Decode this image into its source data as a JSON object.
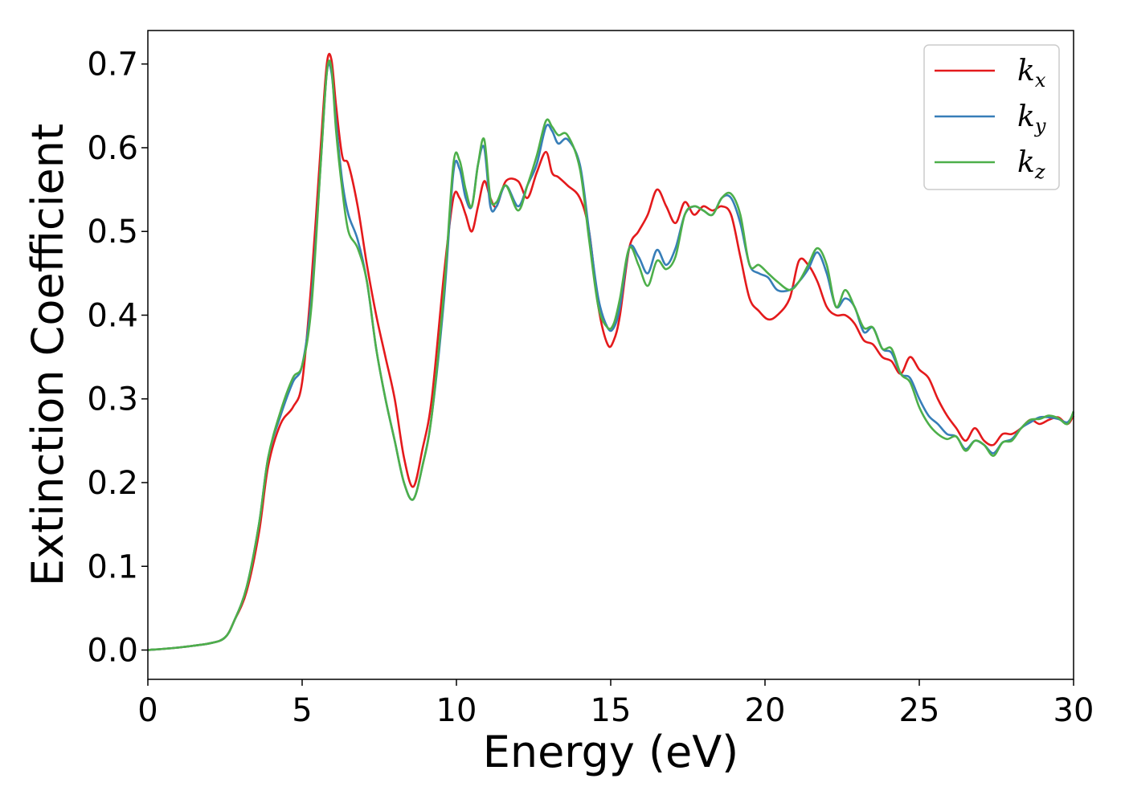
{
  "chart_data": {
    "type": "line",
    "title": "",
    "xlabel": "Energy (eV)",
    "ylabel": "Extinction Coefficient",
    "xlim": [
      0,
      30
    ],
    "ylim": [
      -0.035,
      0.74
    ],
    "xticks": [
      0,
      5,
      10,
      15,
      20,
      25,
      30
    ],
    "yticks": [
      0.0,
      0.1,
      0.2,
      0.3,
      0.4,
      0.5,
      0.6,
      0.7
    ],
    "grid": false,
    "legend_position": "top-right",
    "series": [
      {
        "name": "k",
        "subscript": "x",
        "color": "#e41a1c",
        "x": [
          0,
          1,
          2,
          2.5,
          2.8,
          3.2,
          3.6,
          3.9,
          4.3,
          4.7,
          5.0,
          5.3,
          5.6,
          5.8,
          5.95,
          6.1,
          6.3,
          6.5,
          6.8,
          7.1,
          7.4,
          7.7,
          8.0,
          8.3,
          8.6,
          8.9,
          9.2,
          9.6,
          9.9,
          10.1,
          10.3,
          10.5,
          10.7,
          10.9,
          11.1,
          11.3,
          11.6,
          12.0,
          12.3,
          12.6,
          12.9,
          13.1,
          13.3,
          13.6,
          14.0,
          14.3,
          14.6,
          14.9,
          15.1,
          15.3,
          15.6,
          15.9,
          16.2,
          16.5,
          16.8,
          17.1,
          17.4,
          17.7,
          18.0,
          18.3,
          18.6,
          18.9,
          19.2,
          19.5,
          19.8,
          20.1,
          20.4,
          20.8,
          21.1,
          21.4,
          21.7,
          22.0,
          22.3,
          22.6,
          22.9,
          23.2,
          23.5,
          23.8,
          24.1,
          24.4,
          24.7,
          25.0,
          25.3,
          25.6,
          25.9,
          26.2,
          26.5,
          26.8,
          27.1,
          27.4,
          27.7,
          28.0,
          28.3,
          28.6,
          28.9,
          29.2,
          29.5,
          29.8,
          30.0
        ],
        "y": [
          0.0,
          0.003,
          0.008,
          0.015,
          0.035,
          0.07,
          0.14,
          0.22,
          0.27,
          0.29,
          0.32,
          0.44,
          0.6,
          0.7,
          0.705,
          0.65,
          0.59,
          0.58,
          0.53,
          0.46,
          0.4,
          0.35,
          0.3,
          0.23,
          0.195,
          0.24,
          0.3,
          0.45,
          0.54,
          0.54,
          0.52,
          0.5,
          0.53,
          0.56,
          0.54,
          0.53,
          0.56,
          0.56,
          0.54,
          0.57,
          0.595,
          0.57,
          0.565,
          0.555,
          0.54,
          0.5,
          0.41,
          0.365,
          0.37,
          0.4,
          0.48,
          0.5,
          0.52,
          0.55,
          0.53,
          0.51,
          0.535,
          0.52,
          0.53,
          0.525,
          0.53,
          0.52,
          0.47,
          0.42,
          0.405,
          0.395,
          0.4,
          0.42,
          0.465,
          0.46,
          0.44,
          0.41,
          0.4,
          0.4,
          0.39,
          0.37,
          0.365,
          0.35,
          0.345,
          0.33,
          0.35,
          0.335,
          0.325,
          0.3,
          0.28,
          0.265,
          0.25,
          0.265,
          0.25,
          0.245,
          0.258,
          0.258,
          0.265,
          0.275,
          0.27,
          0.275,
          0.278,
          0.27,
          0.28
        ]
      },
      {
        "name": "k",
        "subscript": "y",
        "color": "#377eb8",
        "x": [
          0,
          1,
          2,
          2.5,
          2.8,
          3.2,
          3.6,
          3.9,
          4.3,
          4.7,
          5.0,
          5.3,
          5.6,
          5.8,
          5.95,
          6.1,
          6.3,
          6.5,
          6.8,
          7.1,
          7.4,
          7.7,
          8.0,
          8.3,
          8.6,
          8.9,
          9.2,
          9.6,
          9.9,
          10.1,
          10.3,
          10.5,
          10.7,
          10.9,
          11.1,
          11.3,
          11.6,
          12.0,
          12.3,
          12.6,
          12.9,
          13.1,
          13.3,
          13.6,
          14.0,
          14.3,
          14.6,
          14.9,
          15.1,
          15.3,
          15.6,
          15.9,
          16.2,
          16.5,
          16.8,
          17.1,
          17.4,
          17.7,
          18.0,
          18.3,
          18.6,
          18.9,
          19.2,
          19.5,
          19.8,
          20.1,
          20.4,
          20.8,
          21.1,
          21.4,
          21.7,
          22.0,
          22.3,
          22.6,
          22.9,
          23.2,
          23.5,
          23.8,
          24.1,
          24.4,
          24.7,
          25.0,
          25.3,
          25.6,
          25.9,
          26.2,
          26.5,
          26.8,
          27.1,
          27.4,
          27.7,
          28.0,
          28.3,
          28.6,
          28.9,
          29.2,
          29.5,
          29.8,
          30.0
        ],
        "y": [
          0.0,
          0.003,
          0.008,
          0.015,
          0.035,
          0.075,
          0.15,
          0.23,
          0.28,
          0.32,
          0.34,
          0.42,
          0.58,
          0.69,
          0.69,
          0.63,
          0.56,
          0.52,
          0.49,
          0.44,
          0.36,
          0.3,
          0.25,
          0.2,
          0.18,
          0.22,
          0.28,
          0.42,
          0.57,
          0.575,
          0.54,
          0.53,
          0.58,
          0.6,
          0.53,
          0.53,
          0.555,
          0.53,
          0.555,
          0.58,
          0.625,
          0.62,
          0.605,
          0.61,
          0.58,
          0.5,
          0.42,
          0.385,
          0.385,
          0.41,
          0.48,
          0.47,
          0.45,
          0.478,
          0.46,
          0.48,
          0.52,
          0.53,
          0.525,
          0.52,
          0.54,
          0.54,
          0.51,
          0.46,
          0.45,
          0.445,
          0.43,
          0.43,
          0.44,
          0.455,
          0.475,
          0.45,
          0.41,
          0.42,
          0.41,
          0.38,
          0.385,
          0.36,
          0.355,
          0.33,
          0.325,
          0.3,
          0.28,
          0.27,
          0.258,
          0.255,
          0.24,
          0.25,
          0.245,
          0.235,
          0.248,
          0.252,
          0.265,
          0.272,
          0.278,
          0.278,
          0.276,
          0.272,
          0.283
        ]
      },
      {
        "name": "k",
        "subscript": "z",
        "color": "#4daf4a",
        "x": [
          0,
          1,
          2,
          2.5,
          2.8,
          3.2,
          3.6,
          3.9,
          4.3,
          4.7,
          5.0,
          5.3,
          5.6,
          5.8,
          5.95,
          6.1,
          6.3,
          6.5,
          6.8,
          7.1,
          7.4,
          7.7,
          8.0,
          8.3,
          8.6,
          8.9,
          9.2,
          9.6,
          9.9,
          10.1,
          10.3,
          10.5,
          10.7,
          10.9,
          11.1,
          11.3,
          11.6,
          12.0,
          12.3,
          12.6,
          12.9,
          13.1,
          13.3,
          13.6,
          14.0,
          14.3,
          14.6,
          14.9,
          15.1,
          15.3,
          15.6,
          15.9,
          16.2,
          16.5,
          16.8,
          17.1,
          17.4,
          17.7,
          18.0,
          18.3,
          18.6,
          18.9,
          19.2,
          19.5,
          19.8,
          20.1,
          20.4,
          20.8,
          21.1,
          21.4,
          21.7,
          22.0,
          22.3,
          22.6,
          22.9,
          23.2,
          23.5,
          23.8,
          24.1,
          24.4,
          24.7,
          25.0,
          25.3,
          25.6,
          25.9,
          26.2,
          26.5,
          26.8,
          27.1,
          27.4,
          27.7,
          28.0,
          28.3,
          28.6,
          28.9,
          29.2,
          29.5,
          29.8,
          30.0
        ],
        "y": [
          0.0,
          0.003,
          0.008,
          0.015,
          0.035,
          0.075,
          0.15,
          0.23,
          0.285,
          0.325,
          0.34,
          0.41,
          0.58,
          0.69,
          0.695,
          0.62,
          0.55,
          0.5,
          0.48,
          0.44,
          0.36,
          0.3,
          0.25,
          0.2,
          0.18,
          0.22,
          0.28,
          0.43,
          0.58,
          0.585,
          0.55,
          0.53,
          0.58,
          0.61,
          0.54,
          0.535,
          0.555,
          0.525,
          0.555,
          0.59,
          0.632,
          0.625,
          0.615,
          0.615,
          0.575,
          0.49,
          0.41,
          0.385,
          0.39,
          0.42,
          0.48,
          0.46,
          0.435,
          0.465,
          0.455,
          0.47,
          0.52,
          0.53,
          0.525,
          0.52,
          0.54,
          0.545,
          0.52,
          0.46,
          0.46,
          0.45,
          0.44,
          0.43,
          0.44,
          0.46,
          0.48,
          0.46,
          0.41,
          0.43,
          0.41,
          0.385,
          0.385,
          0.36,
          0.36,
          0.33,
          0.32,
          0.29,
          0.27,
          0.258,
          0.252,
          0.255,
          0.238,
          0.25,
          0.245,
          0.232,
          0.248,
          0.25,
          0.265,
          0.275,
          0.276,
          0.28,
          0.277,
          0.27,
          0.285
        ]
      }
    ]
  }
}
